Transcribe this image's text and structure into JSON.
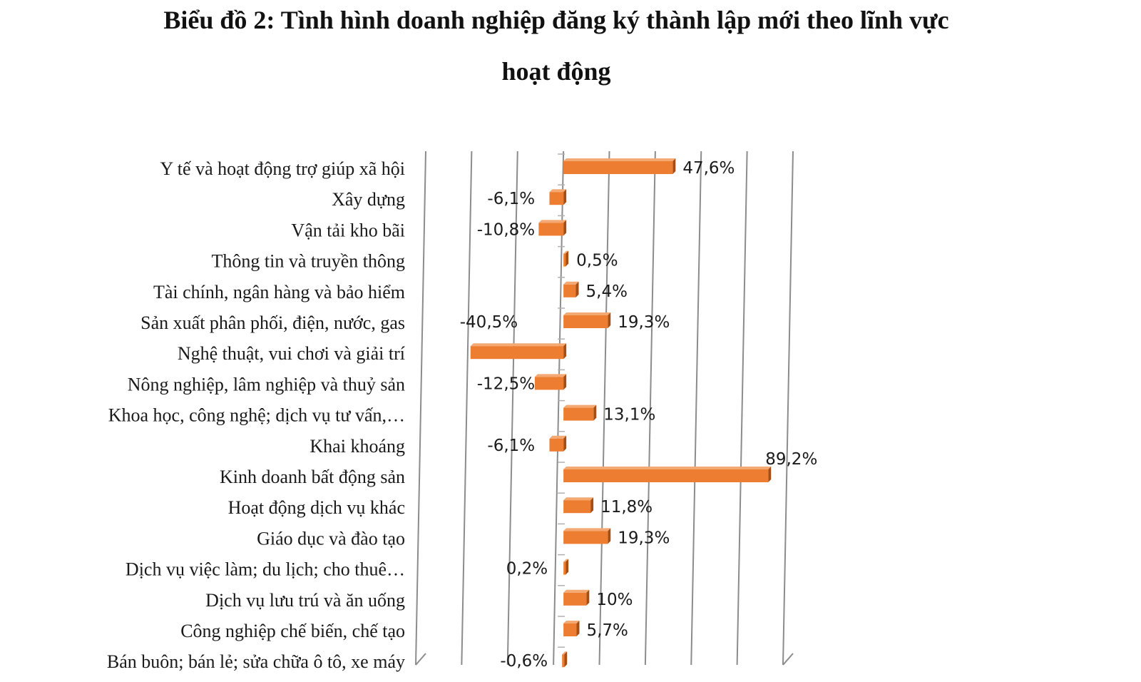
{
  "chart_data": {
    "type": "bar",
    "orientation": "horizontal",
    "title_line1": "Biểu đồ 2: Tình hình doanh nghiệp đăng ký thành lập mới theo lĩnh vực",
    "title_line2": "hoạt động",
    "xlabel": "",
    "ylabel": "",
    "unit": "%",
    "categories": [
      "Y tế và hoạt động trợ giúp xã hội",
      "Xây dựng",
      "Vận tải kho bãi",
      "Thông tin và truyền thông",
      "Tài chính, ngân hàng và bảo hiểm",
      "Sản xuất phân phối, điện, nước, gas",
      "Nghệ thuật, vui chơi và giải trí",
      "Nông nghiệp, lâm nghiệp và thuỷ sản",
      "Khoa học, công nghệ; dịch vụ tư vấn,…",
      "Khai khoáng",
      "Kinh doanh bất động sản",
      "Hoạt động dịch vụ khác",
      "Giáo dục và đào tạo",
      "Dịch vụ việc làm; du lịch; cho thuê…",
      "Dịch vụ lưu trú và ăn uống",
      "Công nghiệp chế biến, chế tạo",
      "Bán buôn; bán lẻ; sửa chữa ô tô, xe máy"
    ],
    "values": [
      47.6,
      -6.1,
      -10.8,
      0.5,
      5.4,
      19.3,
      -40.5,
      -12.5,
      13.1,
      -6.1,
      89.2,
      11.8,
      19.3,
      0.2,
      10,
      5.7,
      -0.6
    ],
    "data_labels": [
      "47,6%",
      "-6,1%",
      "-10,8%",
      "0,5%",
      "5,4%",
      "19,3%",
      "-40,5%",
      "-12,5%",
      "13,1%",
      "-6,1%",
      "89,2%",
      "11,8%",
      "19,3%",
      "0,2%",
      "10%",
      "5,7%",
      "-0,6%"
    ],
    "xlim": [
      -60,
      100
    ],
    "gridlines_at": [
      -60,
      -40,
      -20,
      0,
      20,
      40,
      60,
      80,
      100
    ],
    "grid": true,
    "legend": "none",
    "bar_style": "3d",
    "colors": {
      "bar_front": "#ED7D31",
      "bar_side": "#A54E14",
      "bar_top": "#F4A872",
      "grid": "#8C8C8C",
      "text": "#1a1a1a"
    }
  }
}
